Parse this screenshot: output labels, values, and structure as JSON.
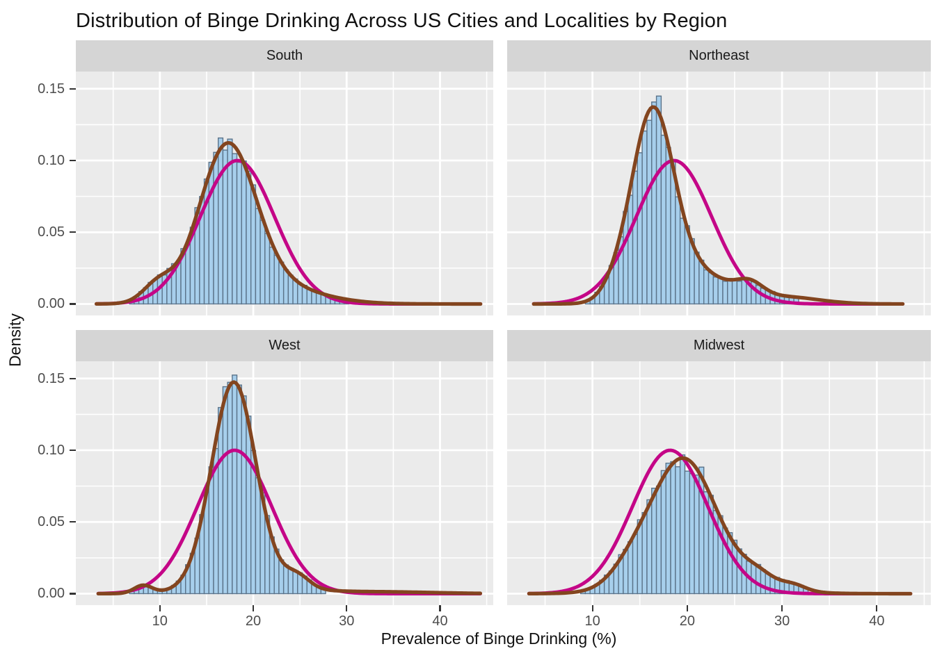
{
  "header": {
    "title": "Distribution of Binge Drinking Across US Cities and Localities by Region"
  },
  "axes": {
    "x": {
      "title": "Prevalence of Binge Drinking (%)",
      "tick_labels": [
        "10",
        "20",
        "30",
        "40"
      ],
      "tick_values": [
        10,
        20,
        30,
        40
      ],
      "minor_values": [
        5,
        15,
        25,
        35,
        45
      ],
      "range": [
        1.0,
        45.7
      ]
    },
    "y": {
      "title": "Density",
      "tick_labels": [
        "0.00",
        "0.05",
        "0.10",
        "0.15"
      ],
      "tick_values": [
        0,
        0.05,
        0.1,
        0.15
      ],
      "minor_values": [
        0.025,
        0.075,
        0.125
      ],
      "range": [
        -0.008,
        0.162
      ]
    }
  },
  "colors": {
    "panel_bg": "#EBEBEB",
    "strip_bg": "#D5D5D5",
    "grid": "#FFFFFF",
    "bar_fill": "#A7CFEC",
    "bar_stroke": "#5B7389",
    "kde_line": "#83451F",
    "normal_line": "#C40687",
    "tick_text": "#4D4D4D",
    "tick_mark": "#333333",
    "title_text": "#111111"
  },
  "chart_data": {
    "type": "bar",
    "subtype": "faceted histogram with kernel-density and fitted-normal overlays",
    "title": "Distribution of Binge Drinking Across US Cities and Localities by Region",
    "xlabel": "Prevalence of Binge Drinking (%)",
    "ylabel": "Density",
    "xlim": [
      1.0,
      45.7
    ],
    "ylim": [
      -0.008,
      0.162
    ],
    "grid": "white major and minor gridlines on gray panels",
    "legend": "none",
    "binwidth": 0.5,
    "facets": [
      {
        "name": "South",
        "row": 0,
        "col": 0,
        "normal_fit": {
          "mean": 18.3,
          "sd": 3.99,
          "peak_density": 0.1
        },
        "kde": {
          "peak_x": 17.2,
          "peak_density": 0.112,
          "components": [
            [
              17.2,
              3.0,
              0.76
            ],
            [
              21.0,
              5.2,
              0.19
            ],
            [
              9.8,
              1.6,
              0.05
            ]
          ],
          "curve_domain": [
            3.2,
            44.4
          ]
        },
        "histogram": {
          "x_start": 7.0,
          "x_end": 30.0,
          "peak_density": 0.115,
          "noise_amp": 0.07,
          "seed": 7
        }
      },
      {
        "name": "Northeast",
        "row": 0,
        "col": 1,
        "normal_fit": {
          "mean": 18.6,
          "sd": 3.99,
          "peak_density": 0.1
        },
        "kde": {
          "peak_x": 16.3,
          "peak_density": 0.137,
          "components": [
            [
              16.3,
              2.2,
              0.68
            ],
            [
              20.3,
              3.9,
              0.225
            ],
            [
              26.6,
              1.4,
              0.03
            ],
            [
              30.5,
              3.5,
              0.04
            ],
            [
              12.5,
              1.5,
              0.025
            ]
          ],
          "curve_domain": [
            3.8,
            42.9
          ]
        },
        "histogram": {
          "x_start": 9.5,
          "x_end": 31.5,
          "peak_density": 0.147,
          "noise_amp": 0.09,
          "seed": 13
        }
      },
      {
        "name": "West",
        "row": 1,
        "col": 0,
        "normal_fit": {
          "mean": 18.0,
          "sd": 3.99,
          "peak_density": 0.1
        },
        "kde": {
          "peak_x": 17.9,
          "peak_density": 0.148,
          "components": [
            [
              17.9,
              2.35,
              0.82
            ],
            [
              19.3,
              4.6,
              0.1
            ],
            [
              8.2,
              0.95,
              0.013
            ],
            [
              24.7,
              1.3,
              0.027
            ],
            [
              33.0,
              6.0,
              0.02
            ]
          ],
          "curve_domain": [
            3.4,
            44.4
          ]
        },
        "histogram": {
          "x_start": 7.0,
          "x_end": 27.5,
          "peak_density": 0.151,
          "noise_amp": 0.06,
          "seed": 5
        }
      },
      {
        "name": "Midwest",
        "row": 1,
        "col": 1,
        "normal_fit": {
          "mean": 18.2,
          "sd": 3.99,
          "peak_density": 0.1
        },
        "kde": {
          "peak_x": 19.4,
          "peak_density": 0.094,
          "components": [
            [
              19.4,
              3.2,
              0.58
            ],
            [
              21.3,
              5.0,
              0.29
            ],
            [
              14.2,
              2.2,
              0.06
            ],
            [
              31.2,
              1.3,
              0.012
            ],
            [
              27.6,
              1.5,
              0.02
            ]
          ],
          "curve_domain": [
            3.3,
            43.7
          ]
        },
        "histogram": {
          "x_start": 9.0,
          "x_end": 32.5,
          "peak_density": 0.096,
          "noise_amp": 0.09,
          "seed": 11
        }
      }
    ]
  }
}
